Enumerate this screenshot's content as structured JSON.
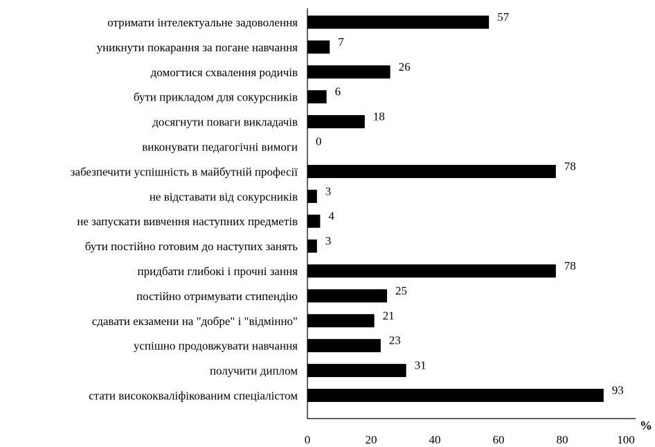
{
  "chart_data": {
    "type": "bar",
    "orientation": "horizontal",
    "categories": [
      "отримати інтелектуальне задоволення",
      "уникнути покарання за погане навчання",
      "домогтися схвалення родичів",
      "бути прикладом для сокурсників",
      "досягнути поваги викладачів",
      "виконувати педагогічні вимоги",
      "забезпечити успішність в майбутній професії",
      "не відставати від сокурсників",
      "не запускати вивчення наступних предметів",
      "бути постійно готовим до наступих занять",
      "придбати глибокі і прочні зання",
      "постійно отримувати стипендію",
      "сдавати екзамени на \"добре\" і \"відмінно\"",
      "успішно продовжувати навчання",
      "получити диплом",
      "стати висококваліфікованим спеціалістом"
    ],
    "values": [
      57,
      7,
      26,
      6,
      18,
      0,
      78,
      3,
      4,
      3,
      78,
      25,
      21,
      23,
      31,
      93
    ],
    "xlim": [
      0,
      100
    ],
    "xticks": [
      0,
      20,
      40,
      60,
      80,
      100
    ],
    "unit_label": "%",
    "bar_color": "#000000",
    "grid": false,
    "legend": false
  }
}
